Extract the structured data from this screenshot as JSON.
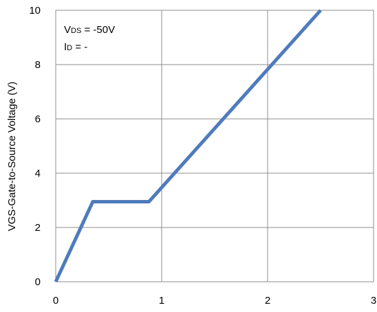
{
  "chart_data": {
    "type": "line",
    "title": "",
    "xlabel": "",
    "ylabel": "VGS-Gate-to-Source Voltage (V)",
    "xlim": [
      0,
      3
    ],
    "ylim": [
      0,
      10
    ],
    "x_ticks": [
      0,
      1,
      2,
      3
    ],
    "y_ticks": [
      0,
      2,
      4,
      6,
      8,
      10
    ],
    "grid": true,
    "annotation": {
      "line1": {
        "prefix": "V",
        "sub": "DS",
        "suffix": " = -50V"
      },
      "line2": {
        "prefix": "I",
        "sub": "D",
        "suffix": " = -"
      }
    },
    "series": [
      {
        "color": "#4f7bbd",
        "x": [
          0,
          0.35,
          0.88,
          2.5
        ],
        "y": [
          0,
          2.95,
          2.95,
          10
        ]
      }
    ]
  }
}
